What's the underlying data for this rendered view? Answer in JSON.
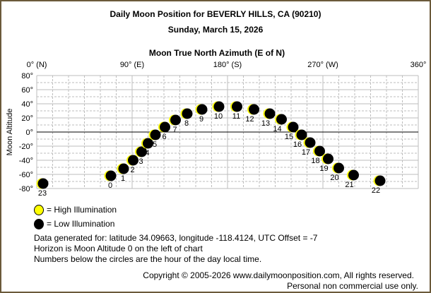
{
  "title": "Daily Moon Position for BEVERLY HILLS, CA (90210)",
  "subtitle": "Sunday, March 15, 2026",
  "chart_data": {
    "type": "scatter",
    "title": "Daily Moon Position for BEVERLY HILLS, CA (90210)",
    "subtitle": "Sunday, March 15, 2026",
    "xlabel": "Moon True North Azimuth (E of N)",
    "ylabel": "Moon Altitude",
    "xlim": [
      0,
      360
    ],
    "ylim": [
      -80,
      80
    ],
    "grid": true,
    "x_tick_labels": [
      {
        "value": 0,
        "label": "0° (N)"
      },
      {
        "value": 90,
        "label": "90° (E)"
      },
      {
        "value": 180,
        "label": "180° (S)"
      },
      {
        "value": 270,
        "label": "270° (W)"
      },
      {
        "value": 360,
        "label": "360°"
      }
    ],
    "y_tick_labels": [
      {
        "value": 80,
        "label": "80°"
      },
      {
        "value": 60,
        "label": "60°"
      },
      {
        "value": 40,
        "label": "40°"
      },
      {
        "value": 20,
        "label": "20°"
      },
      {
        "value": 0,
        "label": "0°"
      },
      {
        "value": -20,
        "label": "-20°"
      },
      {
        "value": -40,
        "label": "-40°"
      },
      {
        "value": -60,
        "label": "-60°"
      },
      {
        "value": -80,
        "label": "-80°"
      }
    ],
    "points": [
      {
        "hour": "0",
        "azimuth": 70,
        "altitude": -62
      },
      {
        "hour": "1",
        "azimuth": 82,
        "altitude": -52
      },
      {
        "hour": "2",
        "azimuth": 91,
        "altitude": -40
      },
      {
        "hour": "3",
        "azimuth": 99,
        "altitude": -28
      },
      {
        "hour": "4",
        "azimuth": 105,
        "altitude": -16
      },
      {
        "hour": "5",
        "azimuth": 112,
        "altitude": -4
      },
      {
        "hour": "6",
        "azimuth": 121,
        "altitude": 7
      },
      {
        "hour": "7",
        "azimuth": 131,
        "altitude": 17
      },
      {
        "hour": "8",
        "azimuth": 142,
        "altitude": 26
      },
      {
        "hour": "9",
        "azimuth": 156,
        "altitude": 32
      },
      {
        "hour": "10",
        "azimuth": 172,
        "altitude": 36
      },
      {
        "hour": "11",
        "azimuth": 189,
        "altitude": 36
      },
      {
        "hour": "12",
        "azimuth": 205,
        "altitude": 32
      },
      {
        "hour": "13",
        "azimuth": 220,
        "altitude": 26
      },
      {
        "hour": "14",
        "azimuth": 231,
        "altitude": 18
      },
      {
        "hour": "15",
        "azimuth": 242,
        "altitude": 7
      },
      {
        "hour": "16",
        "azimuth": 250,
        "altitude": -4
      },
      {
        "hour": "17",
        "azimuth": 258,
        "altitude": -15
      },
      {
        "hour": "18",
        "azimuth": 267,
        "altitude": -27
      },
      {
        "hour": "19",
        "azimuth": 275,
        "altitude": -38
      },
      {
        "hour": "20",
        "azimuth": 285,
        "altitude": -51
      },
      {
        "hour": "21",
        "azimuth": 299,
        "altitude": -61
      },
      {
        "hour": "22",
        "azimuth": 324,
        "altitude": -69
      },
      {
        "hour": "23",
        "azimuth": 6,
        "altitude": -73
      }
    ],
    "illumination": "low",
    "legend": [
      {
        "label": "= High Illumination",
        "color": "#ffff00"
      },
      {
        "label": "= Low Illumination",
        "color": "#000000"
      }
    ],
    "legend_placement": "bottom-left"
  },
  "notes": [
    "Data generated for: latitude 34.09663, longitude -118.4124, UTC Offset = -7",
    "Horizon is Moon Altitude 0 on the left of chart",
    "Numbers below the circles are the hour of the day local time."
  ],
  "copyright": "Copyright © 2005-2026 www.dailymoonposition.com, All rights reserved.",
  "usage": "Personal non commercial use only.",
  "colors": {
    "border": "#6b5a3a",
    "grid": "#c0c0c0",
    "moon_lit": "#ffff00",
    "moon_dark": "#000000"
  }
}
